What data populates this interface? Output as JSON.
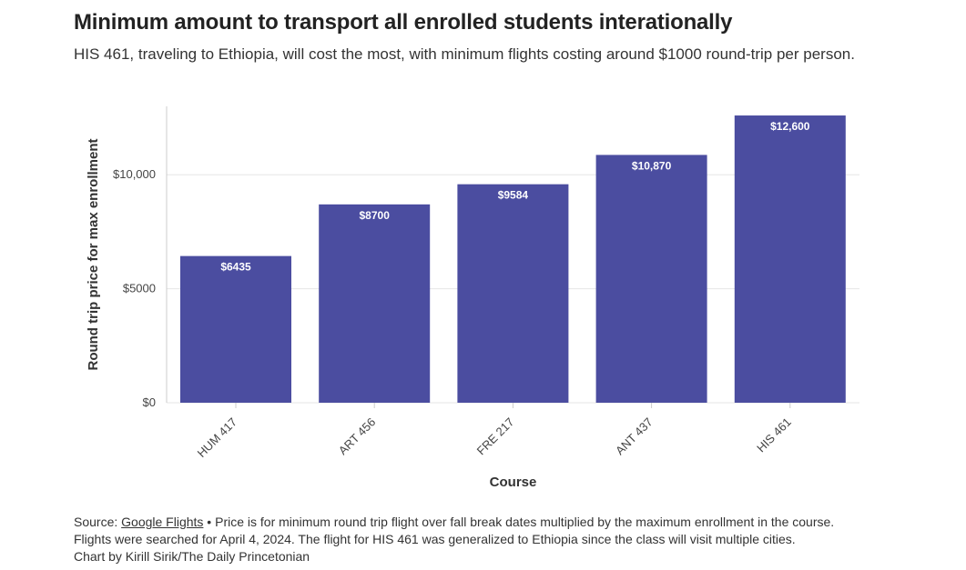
{
  "header": {
    "title": "Minimum amount to transport all enrolled students interationally",
    "subtitle": "HIS 461, traveling to Ethiopia, will cost the most, with minimum flights costing around $1000 round-trip per person."
  },
  "chart_data": {
    "type": "bar",
    "categories": [
      "HUM 417",
      "ART 456",
      "FRE 217",
      "ANT 437",
      "HIS 461"
    ],
    "values": [
      6435,
      8700,
      9584,
      10870,
      12600
    ],
    "value_labels": [
      "$6435",
      "$8700",
      "$9584",
      "$10,870",
      "$12,600"
    ],
    "xlabel": "Course",
    "ylabel": "Round trip price for max enrollment",
    "ylim": [
      0,
      13000
    ],
    "yticks": [
      0,
      5000,
      10000
    ],
    "ytick_labels": [
      "$0",
      "$5000",
      "$10,000"
    ],
    "grid": true,
    "bar_color": "#4b4da0"
  },
  "footer": {
    "source_prefix": "Source: ",
    "source_link": "Google Flights",
    "source_rest": " • Price is for minimum round trip flight over fall break dates multiplied by the maximum enrollment in the course.",
    "line2": "Flights were searched for April 4, 2024. The flight for HIS 461 was generalized to Ethiopia since the class will visit multiple cities.",
    "credit": "Chart by Kirill Sirik/The Daily Princetonian"
  }
}
